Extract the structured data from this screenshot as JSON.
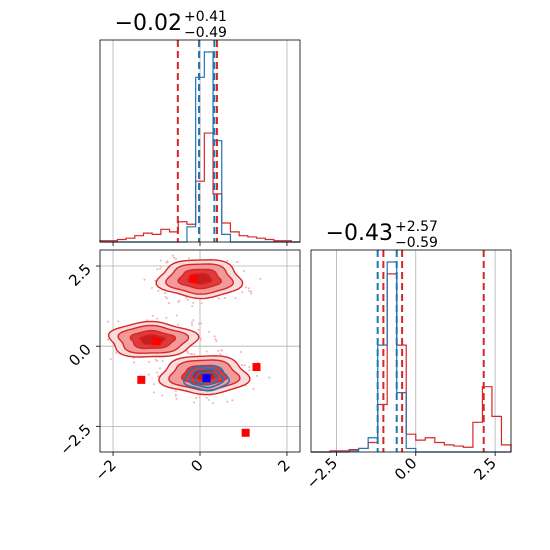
{
  "colors": {
    "red": "#d62728",
    "blue": "#1f77b4",
    "grid": "#b0b0b0",
    "marker_red": "#ff0000",
    "marker_blue": "#0000ff"
  },
  "chart_data": [
    {
      "type": "histogram",
      "panel": "param1-1d",
      "title": {
        "main": "−0.02",
        "sup": "+0.41",
        "sub": "−0.49"
      },
      "xlim": [
        -2.3,
        2.3
      ],
      "grid": true,
      "lines_red": [
        -0.51,
        -0.02,
        0.39
      ],
      "lines_blue": [
        -0.02,
        0.33
      ],
      "bins": [
        -2.3,
        -2.1,
        -1.9,
        -1.7,
        -1.5,
        -1.3,
        -1.1,
        -0.9,
        -0.7,
        -0.5,
        -0.3,
        -0.1,
        0.1,
        0.3,
        0.5,
        0.7,
        0.9,
        1.1,
        1.3,
        1.5,
        1.7,
        1.9,
        2.1,
        2.3
      ],
      "series": [
        {
          "color": "red",
          "counts": [
            1,
            1,
            2,
            3,
            5,
            7,
            6,
            10,
            8,
            16,
            14,
            48,
            86,
            38,
            15,
            8,
            5,
            4,
            3,
            2,
            1,
            1,
            0
          ]
        },
        {
          "color": "blue",
          "counts": [
            0,
            0,
            0,
            0,
            0,
            0,
            0,
            0,
            0,
            0,
            12,
            130,
            150,
            80,
            6,
            0,
            0,
            0,
            0,
            0,
            0,
            0,
            0
          ]
        }
      ]
    },
    {
      "type": "contour",
      "panel": "param1-param2-2d",
      "xlim": [
        -2.3,
        2.3
      ],
      "ylim": [
        -3.3,
        3.0
      ],
      "xticks": [
        "−2",
        "0",
        "2"
      ],
      "yticks": [
        "−2.5",
        "0.0",
        "2.5"
      ],
      "grid": true,
      "red_modes": [
        {
          "x": 0.0,
          "y": 2.1,
          "rx": 0.95,
          "ry": 0.6
        },
        {
          "x": -1.1,
          "y": 0.2,
          "rx": 1.0,
          "ry": 0.55
        },
        {
          "x": 0.1,
          "y": -0.9,
          "rx": 1.0,
          "ry": 0.6
        }
      ],
      "blue_mode": {
        "x": 0.15,
        "y": -1.0,
        "rx": 0.5,
        "ry": 0.38
      },
      "red_points": [
        {
          "x": -0.15,
          "y": 2.1
        },
        {
          "x": -1.0,
          "y": 0.15
        },
        {
          "x": -1.35,
          "y": -1.05
        },
        {
          "x": 1.3,
          "y": -0.65
        },
        {
          "x": 1.05,
          "y": -2.7
        },
        {
          "x": 0.15,
          "y": -1.0
        }
      ],
      "blue_point": {
        "x": 0.15,
        "y": -1.0
      }
    },
    {
      "type": "histogram",
      "panel": "param2-1d",
      "title": {
        "main": "−0.43",
        "sup": "+2.57",
        "sub": "−0.59"
      },
      "xlim": [
        -3.3,
        3.0
      ],
      "xticks": [
        "−2.5",
        "0.0",
        "2.5"
      ],
      "grid": true,
      "lines_red": [
        -1.02,
        -0.43,
        2.14
      ],
      "lines_blue": [
        -1.2,
        -0.6
      ],
      "bins": [
        -3.3,
        -3.0,
        -2.7,
        -2.4,
        -2.1,
        -1.8,
        -1.5,
        -1.2,
        -0.9,
        -0.6,
        -0.3,
        0.0,
        0.3,
        0.6,
        0.9,
        1.2,
        1.5,
        1.8,
        2.1,
        2.4,
        2.7,
        3.0
      ],
      "series": [
        {
          "color": "red",
          "counts": [
            0,
            0,
            1,
            1,
            2,
            3,
            8,
            40,
            150,
            90,
            15,
            10,
            12,
            8,
            6,
            5,
            4,
            25,
            55,
            30,
            6
          ]
        },
        {
          "color": "blue",
          "counts": [
            0,
            0,
            0,
            0,
            1,
            3,
            12,
            90,
            160,
            50,
            3,
            0,
            0,
            0,
            0,
            0,
            0,
            0,
            0,
            0,
            0
          ]
        }
      ]
    }
  ]
}
